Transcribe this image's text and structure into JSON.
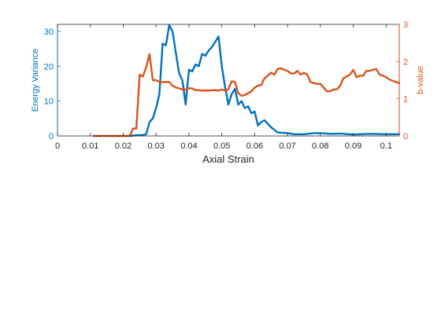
{
  "chart_data": {
    "type": "line",
    "title": "",
    "xlabel": "Axial Strain",
    "ylabel_left": "Energy Variance",
    "ylabel_right": "b-value",
    "xlim": [
      0,
      0.104
    ],
    "ylim_left": [
      0,
      32
    ],
    "ylim_right": [
      0,
      3
    ],
    "x_ticks": [
      0,
      0.01,
      0.02,
      0.03,
      0.04,
      0.05,
      0.06,
      0.07,
      0.08,
      0.09,
      0.1
    ],
    "x_tick_labels": [
      "0",
      "0.01",
      "0.02",
      "0.03",
      "0.04",
      "0.05",
      "0.06",
      "0.07",
      "0.08",
      "0.09",
      "0.1"
    ],
    "y_left_ticks": [
      0,
      10,
      20,
      30
    ],
    "y_left_tick_labels": [
      "0",
      "10",
      "20",
      "30"
    ],
    "y_right_ticks": [
      0,
      1,
      2,
      3
    ],
    "y_right_tick_labels": [
      "0",
      "1",
      "2",
      "3"
    ],
    "grid": false,
    "colors": {
      "left_axis": "#0072BD",
      "right_axis": "#D95319",
      "axis_box": "#262626",
      "text": "#262626"
    },
    "series": [
      {
        "axis": "left",
        "color": "#0072BD",
        "points": [
          [
            0.022,
            0.0
          ],
          [
            0.024,
            0.2
          ],
          [
            0.026,
            0.3
          ],
          [
            0.027,
            0.5
          ],
          [
            0.028,
            4.0
          ],
          [
            0.029,
            5.0
          ],
          [
            0.03,
            8.0
          ],
          [
            0.031,
            12.0
          ],
          [
            0.032,
            26.5
          ],
          [
            0.033,
            26.0
          ],
          [
            0.034,
            31.8
          ],
          [
            0.035,
            30.0
          ],
          [
            0.036,
            24.0
          ],
          [
            0.037,
            18.0
          ],
          [
            0.038,
            16.0
          ],
          [
            0.039,
            9.0
          ],
          [
            0.04,
            19.0
          ],
          [
            0.041,
            18.5
          ],
          [
            0.042,
            20.5
          ],
          [
            0.043,
            20.0
          ],
          [
            0.044,
            23.5
          ],
          [
            0.045,
            23.0
          ],
          [
            0.046,
            24.5
          ],
          [
            0.047,
            25.5
          ],
          [
            0.048,
            27.0
          ],
          [
            0.049,
            28.5
          ],
          [
            0.05,
            20.0
          ],
          [
            0.051,
            14.0
          ],
          [
            0.052,
            9.0
          ],
          [
            0.053,
            12.0
          ],
          [
            0.054,
            13.5
          ],
          [
            0.055,
            9.0
          ],
          [
            0.056,
            10.0
          ],
          [
            0.057,
            8.0
          ],
          [
            0.058,
            8.5
          ],
          [
            0.059,
            6.5
          ],
          [
            0.06,
            7.0
          ],
          [
            0.061,
            3.0
          ],
          [
            0.062,
            4.0
          ],
          [
            0.063,
            4.5
          ],
          [
            0.065,
            2.5
          ],
          [
            0.067,
            1.0
          ],
          [
            0.07,
            0.8
          ],
          [
            0.072,
            0.5
          ],
          [
            0.075,
            0.5
          ],
          [
            0.078,
            0.8
          ],
          [
            0.08,
            0.8
          ],
          [
            0.083,
            0.6
          ],
          [
            0.086,
            0.7
          ],
          [
            0.09,
            0.4
          ],
          [
            0.095,
            0.6
          ],
          [
            0.1,
            0.5
          ],
          [
            0.104,
            0.5
          ]
        ]
      },
      {
        "axis": "right",
        "color": "#D95319",
        "points": [
          [
            0.011,
            0.0
          ],
          [
            0.022,
            0.0
          ],
          [
            0.023,
            0.2
          ],
          [
            0.024,
            0.2
          ],
          [
            0.025,
            1.65
          ],
          [
            0.026,
            1.6
          ],
          [
            0.027,
            1.85
          ],
          [
            0.028,
            2.2
          ],
          [
            0.029,
            1.5
          ],
          [
            0.03,
            1.5
          ],
          [
            0.031,
            1.45
          ],
          [
            0.032,
            1.45
          ],
          [
            0.033,
            1.45
          ],
          [
            0.034,
            1.45
          ],
          [
            0.035,
            1.35
          ],
          [
            0.036,
            1.3
          ],
          [
            0.037,
            1.28
          ],
          [
            0.038,
            1.25
          ],
          [
            0.039,
            1.25
          ],
          [
            0.04,
            1.28
          ],
          [
            0.041,
            1.28
          ],
          [
            0.042,
            1.23
          ],
          [
            0.043,
            1.23
          ],
          [
            0.044,
            1.22
          ],
          [
            0.045,
            1.22
          ],
          [
            0.046,
            1.22
          ],
          [
            0.047,
            1.23
          ],
          [
            0.048,
            1.23
          ],
          [
            0.049,
            1.22
          ],
          [
            0.05,
            1.25
          ],
          [
            0.051,
            1.22
          ],
          [
            0.052,
            1.25
          ],
          [
            0.053,
            1.47
          ],
          [
            0.054,
            1.45
          ],
          [
            0.055,
            1.15
          ],
          [
            0.056,
            1.08
          ],
          [
            0.057,
            1.1
          ],
          [
            0.058,
            1.15
          ],
          [
            0.059,
            1.2
          ],
          [
            0.06,
            1.3
          ],
          [
            0.061,
            1.35
          ],
          [
            0.062,
            1.37
          ],
          [
            0.063,
            1.55
          ],
          [
            0.064,
            1.62
          ],
          [
            0.065,
            1.7
          ],
          [
            0.066,
            1.65
          ],
          [
            0.067,
            1.8
          ],
          [
            0.068,
            1.82
          ],
          [
            0.069,
            1.78
          ],
          [
            0.07,
            1.75
          ],
          [
            0.071,
            1.68
          ],
          [
            0.072,
            1.68
          ],
          [
            0.073,
            1.75
          ],
          [
            0.074,
            1.65
          ],
          [
            0.075,
            1.7
          ],
          [
            0.076,
            1.65
          ],
          [
            0.077,
            1.45
          ],
          [
            0.078,
            1.42
          ],
          [
            0.079,
            1.4
          ],
          [
            0.08,
            1.4
          ],
          [
            0.081,
            1.3
          ],
          [
            0.082,
            1.2
          ],
          [
            0.083,
            1.2
          ],
          [
            0.084,
            1.25
          ],
          [
            0.085,
            1.25
          ],
          [
            0.086,
            1.35
          ],
          [
            0.087,
            1.55
          ],
          [
            0.088,
            1.6
          ],
          [
            0.089,
            1.65
          ],
          [
            0.09,
            1.78
          ],
          [
            0.091,
            1.58
          ],
          [
            0.092,
            1.62
          ],
          [
            0.093,
            1.62
          ],
          [
            0.094,
            1.75
          ],
          [
            0.095,
            1.75
          ],
          [
            0.096,
            1.78
          ],
          [
            0.097,
            1.8
          ],
          [
            0.098,
            1.65
          ],
          [
            0.099,
            1.62
          ],
          [
            0.1,
            1.58
          ],
          [
            0.101,
            1.52
          ],
          [
            0.102,
            1.48
          ],
          [
            0.103,
            1.45
          ],
          [
            0.104,
            1.42
          ]
        ]
      }
    ]
  }
}
